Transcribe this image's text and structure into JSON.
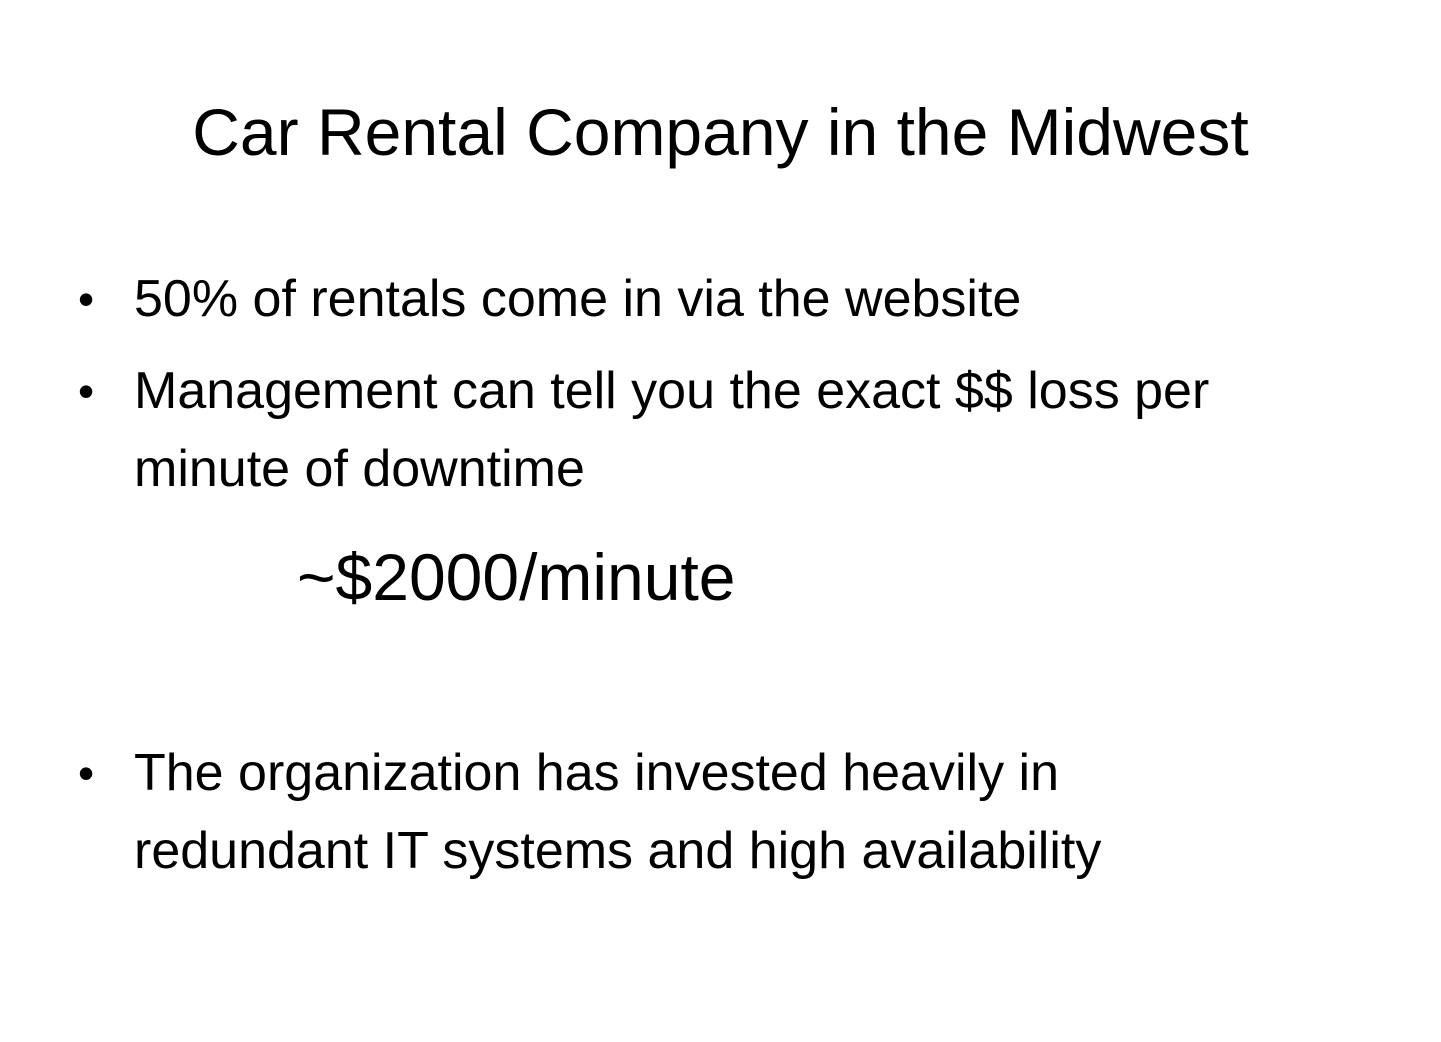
{
  "slide": {
    "title": "Car Rental Company in the Midwest",
    "bullets": [
      {
        "line1": "50% of rentals come in via the website",
        "line2": ""
      },
      {
        "line1": "Management can tell you the exact $$ loss per",
        "line2": "minute of downtime"
      },
      {
        "line1": "The organization has invested heavily in",
        "line2": "redundant IT systems and high availability"
      }
    ],
    "highlight": "~$2000/minute",
    "bullet_glyph": "•"
  }
}
